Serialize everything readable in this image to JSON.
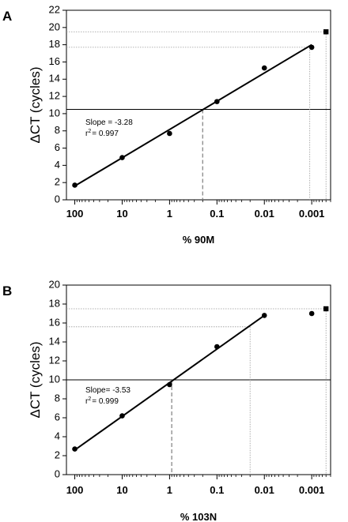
{
  "chart_data": [
    {
      "panel_label": "A",
      "type": "scatter",
      "xlabel": "% 90M",
      "ylabel": "ΔCT (cycles)",
      "x_scale": "log-reversed",
      "x_ticks": [
        100,
        10,
        1,
        0.1,
        0.01,
        0.001
      ],
      "x_tick_labels": [
        "100",
        "10",
        "1",
        "0.1",
        "0.01",
        "0.001"
      ],
      "xlim": [
        150,
        0.0004
      ],
      "ylim": [
        0,
        22
      ],
      "y_ticks": [
        0,
        2,
        4,
        6,
        8,
        10,
        12,
        14,
        16,
        18,
        20,
        22
      ],
      "points": [
        {
          "x": 100,
          "y": 1.7
        },
        {
          "x": 10,
          "y": 4.9
        },
        {
          "x": 1,
          "y": 7.7
        },
        {
          "x": 0.1,
          "y": 11.4
        },
        {
          "x": 0.01,
          "y": 15.3
        },
        {
          "x": 0.001,
          "y": 17.7
        }
      ],
      "outlier_points": [
        {
          "x": 0.0005,
          "y": 19.5
        }
      ],
      "fit_line": {
        "x": [
          100,
          0.001
        ],
        "y": [
          1.6,
          18.0
        ]
      },
      "h_line": 10.5,
      "dashed_v": {
        "x": 0.2,
        "y": 10.5
      },
      "dotted_guides": [
        {
          "x": 0.0011,
          "y": 17.7
        },
        {
          "x": 0.0005,
          "y": 19.5
        }
      ],
      "annotation": {
        "slope": "Slope = -3.28",
        "r2_prefix": "r",
        "r2_exp": "2",
        "r2_value": "= 0.997"
      }
    },
    {
      "panel_label": "B",
      "type": "scatter",
      "xlabel": "% 103N",
      "ylabel": "ΔCT (cycles)",
      "x_scale": "log-reversed",
      "x_ticks": [
        100,
        10,
        1,
        0.1,
        0.01,
        0.001
      ],
      "x_tick_labels": [
        "100",
        "10",
        "1",
        "0.1",
        "0.01",
        "0.001"
      ],
      "xlim": [
        150,
        0.0004
      ],
      "ylim": [
        0,
        20
      ],
      "y_ticks": [
        0,
        2,
        4,
        6,
        8,
        10,
        12,
        14,
        16,
        18,
        20
      ],
      "points": [
        {
          "x": 100,
          "y": 2.7
        },
        {
          "x": 10,
          "y": 6.2
        },
        {
          "x": 1,
          "y": 9.5
        },
        {
          "x": 0.1,
          "y": 13.5
        },
        {
          "x": 0.01,
          "y": 16.8
        },
        {
          "x": 0.001,
          "y": 17.0
        }
      ],
      "outlier_points": [
        {
          "x": 0.0005,
          "y": 17.5
        }
      ],
      "fit_line": {
        "x": [
          100,
          0.01
        ],
        "y": [
          2.6,
          16.8
        ]
      },
      "h_line": 10.0,
      "dashed_v": {
        "x": 0.9,
        "y": 10.0
      },
      "dotted_guides": [
        {
          "x": 0.02,
          "y": 15.6
        },
        {
          "x": 0.0005,
          "y": 17.5
        }
      ],
      "annotation": {
        "slope": "Slope= -3.53",
        "r2_prefix": "r",
        "r2_exp": "2",
        "r2_value": "= 0.999"
      }
    }
  ]
}
